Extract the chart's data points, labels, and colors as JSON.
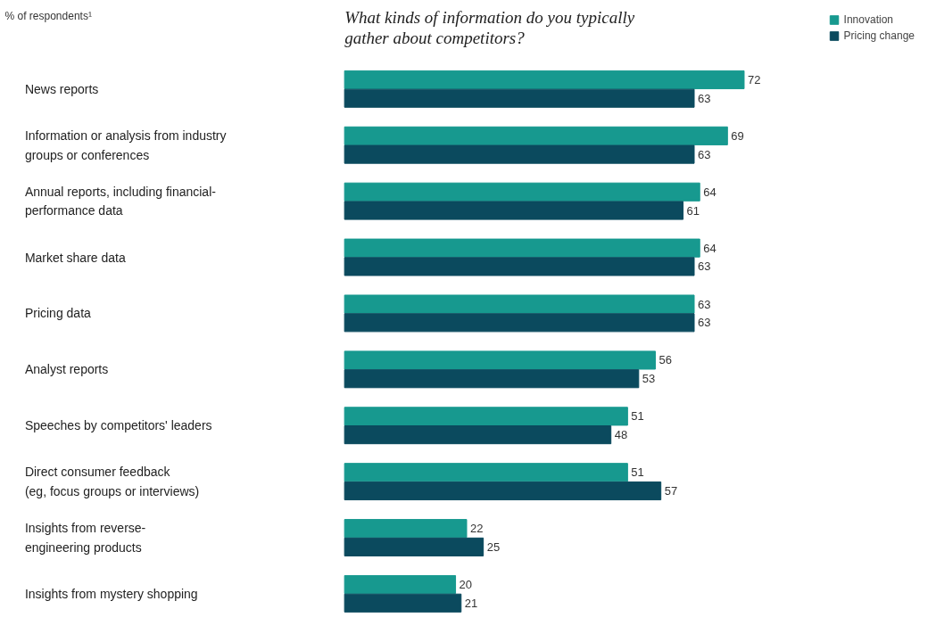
{
  "chart_data": {
    "type": "bar",
    "orientation": "horizontal",
    "title": "What kinds of information do you typically\ngather about competitors?",
    "annotations": [
      "% of respondents¹"
    ],
    "categories": [
      "News reports",
      "Information or analysis from industry\ngroups or conferences",
      "Annual reports, including financial-\nperformance data",
      "Market share data",
      "Pricing data",
      "Analyst reports",
      "Speeches by competitors' leaders",
      "Direct consumer feedback\n(eg, focus groups or interviews)",
      "Insights from reverse-\nengineering products",
      "Insights from mystery shopping"
    ],
    "series": [
      {
        "name": "Innovation",
        "color": "#17998f",
        "values": [
          72,
          69,
          64,
          64,
          63,
          56,
          51,
          51,
          22,
          20
        ]
      },
      {
        "name": "Pricing change",
        "color": "#0b4a5e",
        "values": [
          63,
          63,
          61,
          63,
          63,
          53,
          48,
          57,
          25,
          21
        ]
      }
    ],
    "data_labels": true,
    "legend": "top right",
    "grid": false
  }
}
